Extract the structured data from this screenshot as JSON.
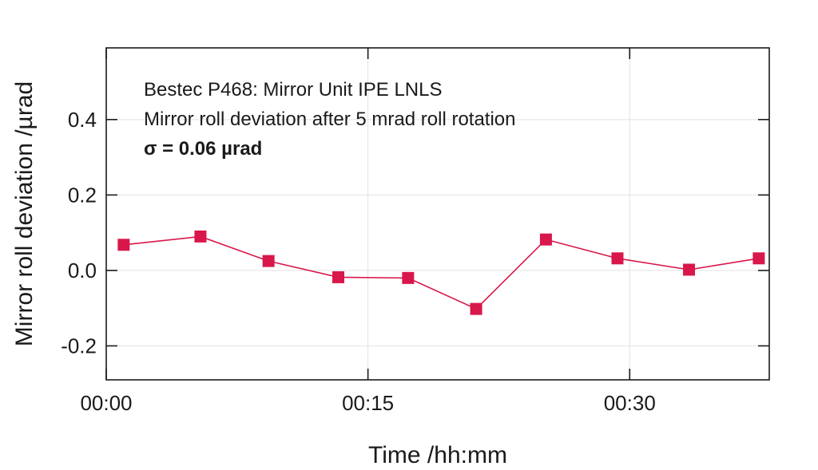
{
  "chart_data": {
    "type": "line",
    "xlabel": "Time /hh:mm",
    "ylabel": "Mirror roll deviation /µrad",
    "x_unit": "minutes",
    "x_ticks": [
      {
        "value": 0,
        "label": "00:00"
      },
      {
        "value": 15,
        "label": "00:15"
      },
      {
        "value": 30,
        "label": "00:30"
      }
    ],
    "y_ticks": [
      {
        "value": -0.2,
        "label": "-0.2"
      },
      {
        "value": 0.0,
        "label": "0.0"
      },
      {
        "value": 0.2,
        "label": "0.2"
      },
      {
        "value": 0.4,
        "label": "0.4"
      }
    ],
    "xlim": [
      0,
      38
    ],
    "ylim": [
      -0.29,
      0.59
    ],
    "grid": true,
    "annotations": [
      "Bestec P468: Mirror Unit IPE LNLS",
      "Mirror roll deviation after 5 mrad roll rotation",
      "σ = 0.06 µrad"
    ],
    "series": [
      {
        "color": "#d8174a",
        "marker": "square",
        "x": [
          1.0,
          5.4,
          9.3,
          13.3,
          17.3,
          21.2,
          25.2,
          29.3,
          33.4,
          37.4
        ],
        "y": [
          0.068,
          0.09,
          0.025,
          -0.018,
          -0.02,
          -0.102,
          0.082,
          0.032,
          0.002,
          0.032
        ]
      }
    ]
  }
}
